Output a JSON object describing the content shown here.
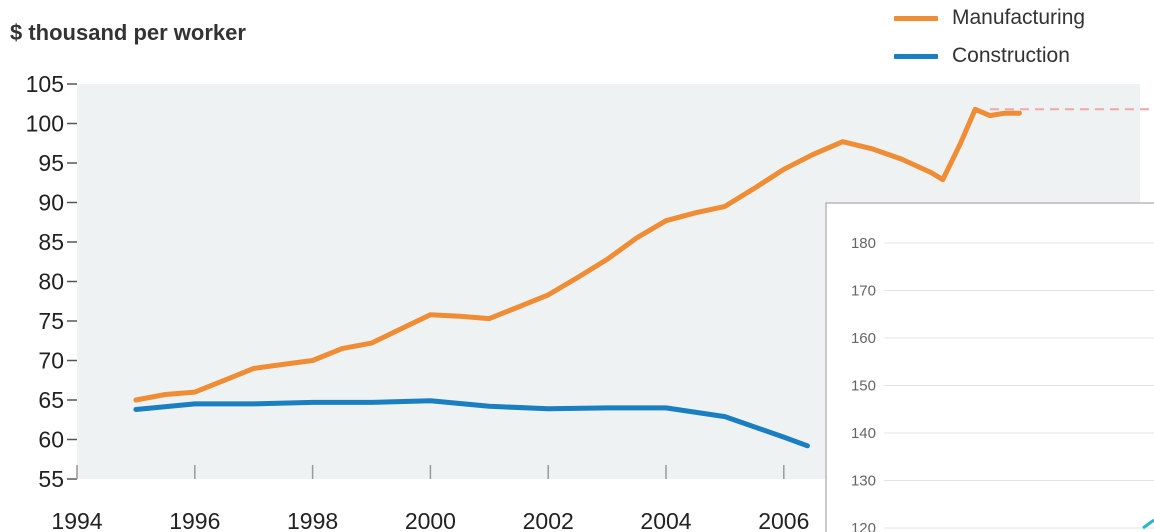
{
  "chart_data": [
    {
      "type": "line",
      "title": "",
      "ylabel": "$ thousand per worker",
      "xlabel": "",
      "xlim": [
        1994,
        2009.5
      ],
      "ylim": [
        55,
        105
      ],
      "x_ticks": [
        1994,
        1996,
        1998,
        2000,
        2002,
        2004,
        2006
      ],
      "y_ticks": [
        55,
        60,
        65,
        70,
        75,
        80,
        85,
        90,
        95,
        100,
        105
      ],
      "grid": false,
      "legend": "top-right",
      "series": [
        {
          "name": "Manufacturing",
          "color": "#f08c34",
          "x": [
            1995,
            1995.5,
            1996,
            1996.5,
            1997,
            1997.5,
            1998,
            1998.5,
            1999,
            1999.5,
            2000,
            2000.5,
            2001,
            2001.5,
            2002,
            2002.5,
            2003,
            2003.5,
            2004,
            2004.5,
            2005,
            2005.5,
            2006,
            2006.5,
            2007,
            2007.5,
            2008,
            2008.5,
            2008.7,
            2009,
            2009.25,
            2009.5,
            2009.75,
            2010
          ],
          "y": [
            65,
            65.7,
            66,
            67.5,
            69,
            69.5,
            70,
            71.5,
            72.2,
            74,
            75.8,
            75.6,
            75.3,
            76.8,
            78.3,
            80.5,
            82.8,
            85.5,
            87.7,
            88.7,
            89.5,
            91.8,
            94.2,
            96.1,
            97.7,
            96.8,
            95.5,
            93.8,
            92.9,
            97.5,
            101.8,
            101,
            101.3,
            101.3
          ]
        },
        {
          "name": "Construction",
          "color": "#1a7fc1",
          "x": [
            1995,
            1996,
            1997,
            1998,
            1999,
            2000,
            2001,
            2002,
            2003,
            2004,
            2005,
            2006,
            2006.4
          ],
          "y": [
            63.8,
            64.5,
            64.5,
            64.7,
            64.7,
            64.9,
            64.2,
            63.9,
            64,
            64,
            62.9,
            60.3,
            59.2
          ]
        }
      ],
      "reference_line": {
        "y": 101.8,
        "color": "#f4a6a6",
        "style": "dashed"
      }
    },
    {
      "type": "line",
      "title": "",
      "ylim": [
        120,
        180
      ],
      "y_ticks": [
        120,
        130,
        140,
        150,
        160,
        170,
        180
      ],
      "series": []
    }
  ],
  "legend": [
    {
      "label": "Manufacturing",
      "color": "#f08c34"
    },
    {
      "label": "Construction",
      "color": "#1a7fc1"
    }
  ],
  "colors": {
    "plot_background": "#eef2f3",
    "axis_text": "#222222",
    "inset_border": "#b8b8b8",
    "inset_grid": "#e3e3e3",
    "inset_text": "#666666"
  }
}
